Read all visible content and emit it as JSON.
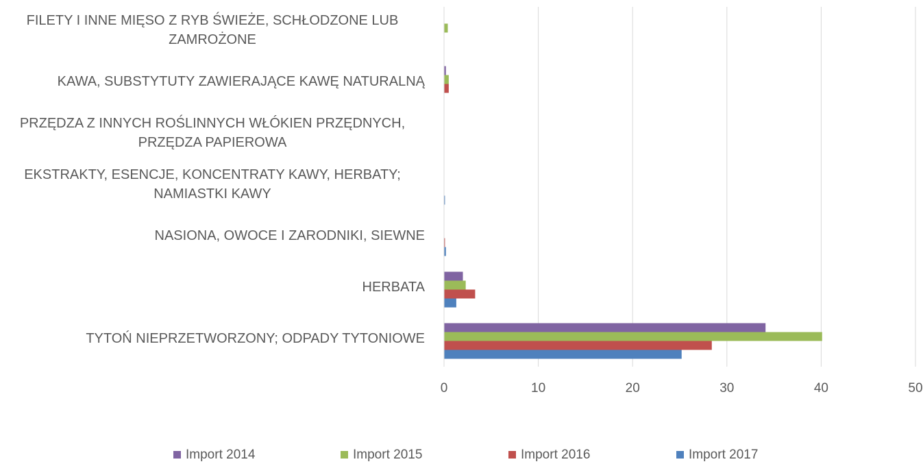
{
  "chart_data": {
    "type": "hbar",
    "categories": [
      "FILETY I INNE MIĘSO Z RYB ŚWIEŻE, SCHŁODZONE LUB ZAMROŻONE",
      "KAWA, SUBSTYTUTY ZAWIERAJĄCE KAWĘ NATURALNĄ",
      "PRZĘDZA Z INNYCH ROŚLINNYCH WŁÓKIEN PRZĘDNYCH, PRZĘDZA PAPIEROWA",
      "EKSTRAKTY, ESENCJE, KONCENTRATY KAWY, HERBATY; NAMIASTKI KAWY",
      "NASIONA, OWOCE I ZARODNIKI, SIEWNE",
      "HERBATA",
      "TYTOŃ NIEPRZETWORZONY; ODPADY TYTONIOWE"
    ],
    "series": [
      {
        "name": "Import 2014",
        "color": "#8064a2",
        "values": [
          0,
          0.2,
          0,
          0,
          0,
          2.0,
          34.1
        ]
      },
      {
        "name": "Import 2015",
        "color": "#9bbb59",
        "values": [
          0.4,
          0.5,
          0,
          0,
          0,
          2.3,
          40.1
        ]
      },
      {
        "name": "Import 2016",
        "color": "#c0504d",
        "values": [
          0,
          0.5,
          0,
          0,
          0.1,
          3.3,
          28.4
        ]
      },
      {
        "name": "Import 2017",
        "color": "#4f81bd",
        "values": [
          0,
          0,
          0,
          0.1,
          0.2,
          1.3,
          25.2
        ]
      }
    ],
    "xlim": [
      0,
      50
    ],
    "xticks": [
      0,
      10,
      20,
      30,
      40,
      50
    ],
    "grid": true,
    "legend": "bottom"
  }
}
